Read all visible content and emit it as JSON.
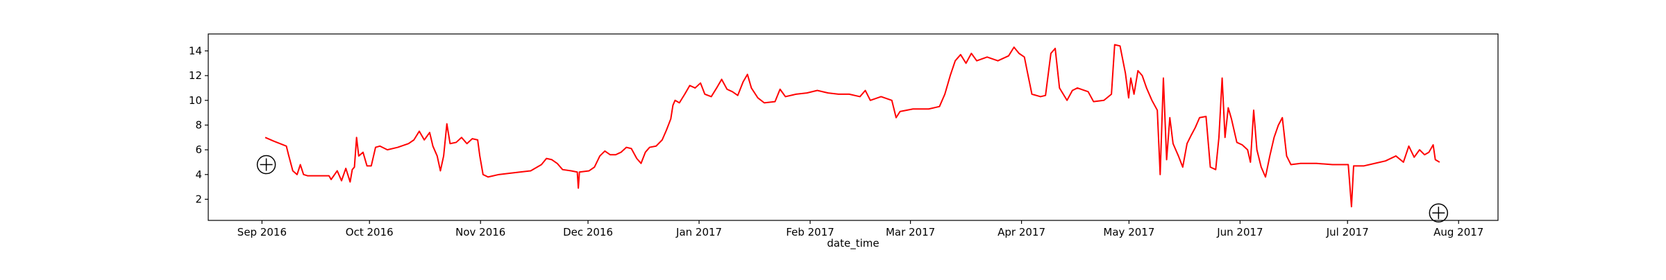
{
  "chart_data": {
    "type": "line",
    "x_label": "date_time",
    "xlim": [
      -15,
      345
    ],
    "ylim": [
      0.29,
      15.37
    ],
    "xticks": [
      {
        "value": 0,
        "label": "Sep 2016"
      },
      {
        "value": 30,
        "label": "Oct 2016"
      },
      {
        "value": 61,
        "label": "Nov 2016"
      },
      {
        "value": 91,
        "label": "Dec 2016"
      },
      {
        "value": 122,
        "label": "Jan 2017"
      },
      {
        "value": 153,
        "label": "Feb 2017"
      },
      {
        "value": 181,
        "label": "Mar 2017"
      },
      {
        "value": 212,
        "label": "Apr 2017"
      },
      {
        "value": 242,
        "label": "May 2017"
      },
      {
        "value": 273,
        "label": "Jun 2017"
      },
      {
        "value": 303,
        "label": "Jul 2017"
      },
      {
        "value": 334,
        "label": "Aug 2017"
      }
    ],
    "yticks": [
      2,
      4,
      6,
      8,
      10,
      12,
      14
    ],
    "x": [
      0.9,
      3.3,
      6.8,
      7.4,
      8.6,
      9.8,
      10.7,
      11.6,
      12.7,
      18.7,
      19.3,
      21.0,
      22.2,
      23.4,
      24.6,
      25.2,
      25.8,
      26.4,
      27.0,
      28.2,
      29.3,
      30.5,
      31.7,
      32.9,
      35.0,
      37.9,
      40.9,
      42.4,
      43.9,
      45.3,
      46.8,
      47.7,
      48.9,
      49.8,
      50.7,
      51.6,
      52.5,
      54.2,
      55.7,
      57.2,
      58.7,
      60.2,
      60.8,
      61.7,
      63.1,
      66.1,
      69.1,
      72.0,
      75.0,
      78.0,
      79.4,
      80.9,
      82.4,
      83.9,
      86.3,
      88.0,
      88.3,
      88.6,
      91.3,
      92.8,
      94.3,
      95.7,
      97.2,
      98.7,
      100.2,
      101.7,
      103.1,
      104.6,
      105.8,
      107.0,
      108.2,
      110.0,
      111.7,
      112.9,
      114.1,
      114.7,
      115.3,
      116.5,
      118.0,
      119.4,
      120.9,
      122.4,
      123.6,
      125.4,
      126.9,
      128.3,
      129.8,
      131.3,
      132.8,
      134.3,
      135.5,
      136.6,
      138.4,
      140.2,
      143.2,
      144.6,
      146.1,
      149.1,
      152.1,
      155.0,
      158.0,
      160.9,
      163.9,
      166.9,
      168.4,
      169.8,
      172.8,
      175.8,
      177.0,
      178.1,
      181.7,
      186.1,
      189.1,
      190.6,
      192.1,
      193.5,
      195.0,
      196.5,
      198.0,
      199.5,
      202.4,
      205.4,
      208.4,
      209.9,
      211.3,
      212.8,
      213.7,
      214.9,
      217.3,
      218.7,
      220.2,
      221.4,
      222.6,
      224.7,
      226.2,
      227.6,
      230.6,
      232.1,
      235.0,
      237.1,
      238.0,
      239.5,
      241.0,
      241.9,
      242.5,
      243.4,
      244.5,
      245.7,
      246.9,
      248.4,
      249.9,
      250.7,
      251.6,
      252.5,
      253.4,
      254.3,
      255.8,
      257.0,
      258.2,
      259.4,
      260.5,
      261.7,
      263.5,
      264.7,
      266.2,
      267.1,
      268.0,
      268.8,
      269.7,
      270.6,
      272.1,
      273.6,
      275.1,
      275.9,
      276.8,
      277.7,
      278.9,
      280.1,
      281.3,
      282.5,
      283.7,
      284.8,
      286.0,
      287.2,
      289.9,
      294.3,
      298.8,
      303.2,
      304.1,
      304.7,
      307.6,
      310.6,
      313.6,
      316.5,
      318.6,
      320.1,
      321.6,
      323.1,
      324.5,
      325.7,
      326.9,
      327.5,
      328.7
    ],
    "series": [
      {
        "color": "#ff0000",
        "values": [
          7.0,
          6.7,
          6.3,
          5.6,
          4.3,
          4.0,
          4.8,
          4.0,
          3.9,
          3.9,
          3.6,
          4.3,
          3.5,
          4.5,
          3.4,
          4.4,
          4.6,
          7.0,
          5.5,
          5.8,
          4.7,
          4.7,
          6.2,
          6.3,
          6.0,
          6.2,
          6.5,
          6.8,
          7.5,
          6.8,
          7.4,
          6.3,
          5.5,
          4.3,
          5.5,
          8.1,
          6.5,
          6.6,
          7.0,
          6.5,
          6.9,
          6.8,
          5.5,
          4.0,
          3.8,
          4.0,
          4.1,
          4.2,
          4.3,
          4.8,
          5.3,
          5.2,
          4.9,
          4.4,
          4.3,
          4.2,
          2.9,
          4.2,
          4.3,
          4.6,
          5.5,
          5.9,
          5.6,
          5.6,
          5.8,
          6.2,
          6.1,
          5.3,
          4.9,
          5.8,
          6.2,
          6.3,
          6.8,
          7.6,
          8.5,
          9.6,
          10.0,
          9.8,
          10.5,
          11.2,
          11.0,
          11.4,
          10.5,
          10.3,
          11.0,
          11.7,
          10.9,
          10.7,
          10.4,
          11.5,
          12.1,
          11.0,
          10.2,
          9.8,
          9.9,
          10.9,
          10.3,
          10.5,
          10.6,
          10.8,
          10.6,
          10.5,
          10.5,
          10.3,
          10.8,
          10.0,
          10.3,
          10.0,
          8.6,
          9.1,
          9.3,
          9.3,
          9.5,
          10.5,
          12.0,
          13.2,
          13.7,
          13.0,
          13.8,
          13.2,
          13.5,
          13.2,
          13.6,
          14.3,
          13.8,
          13.5,
          12.2,
          10.5,
          10.3,
          10.4,
          13.8,
          14.2,
          11.0,
          10.0,
          10.8,
          11.0,
          10.7,
          9.9,
          10.0,
          10.5,
          14.5,
          14.4,
          12.2,
          10.2,
          11.8,
          10.5,
          12.4,
          12.0,
          11.0,
          10.0,
          9.2,
          4.0,
          11.8,
          5.2,
          8.6,
          6.5,
          5.5,
          4.6,
          6.5,
          7.2,
          7.8,
          8.6,
          8.7,
          4.6,
          4.4,
          7.0,
          11.8,
          7.0,
          9.4,
          8.5,
          6.6,
          6.4,
          6.0,
          5.0,
          9.2,
          6.0,
          4.6,
          3.8,
          5.5,
          7.0,
          8.0,
          8.6,
          5.5,
          4.8,
          4.9,
          4.9,
          4.8,
          4.8,
          1.4,
          4.7,
          4.7,
          4.9,
          5.1,
          5.5,
          5.0,
          6.3,
          5.4,
          6.0,
          5.6,
          5.8,
          6.4,
          5.2,
          5.0
        ]
      }
    ],
    "markers": {
      "x": [
        1.2,
        328.4
      ],
      "y": [
        4.8,
        0.89
      ]
    }
  }
}
